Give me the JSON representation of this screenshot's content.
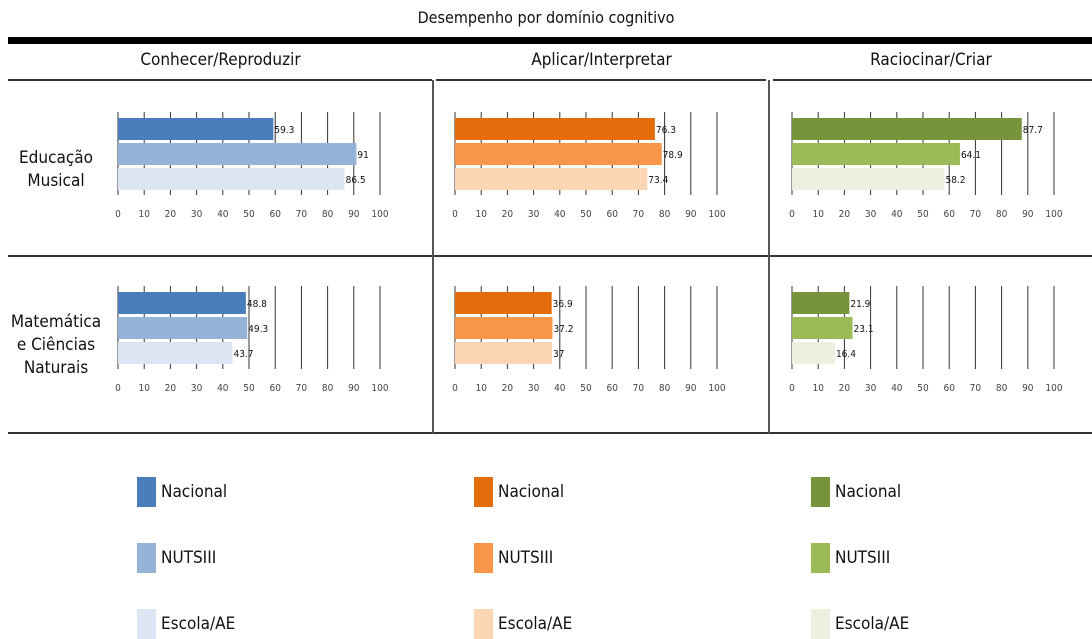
{
  "title": "Desempenho por domínio cognitivo",
  "columns": [
    {
      "label": "Conhecer/Reproduzir"
    },
    {
      "label": "Aplicar/Interpretar"
    },
    {
      "label": "Raciocinar/Criar"
    }
  ],
  "rows": [
    {
      "label_lines": [
        "Educação",
        "Musical"
      ]
    },
    {
      "label_lines": [
        "Matemática",
        "e Ciências",
        "Naturais"
      ]
    }
  ],
  "series_names": [
    "Nacional",
    "NUTSIII",
    "Escola/AE"
  ],
  "palettes": [
    [
      "#4a7ebb",
      "#95b3d7",
      "#dce6f2"
    ],
    [
      "#e46c0a",
      "#f79646",
      "#fcd5b5"
    ],
    [
      "#77933c",
      "#9bbb59",
      "#ebf1de"
    ]
  ],
  "chart_data": [
    {
      "type": "bar",
      "orientation": "horizontal",
      "row": "Educação Musical",
      "column": "Conhecer/Reproduzir",
      "xlim": [
        0,
        100
      ],
      "ticks": [
        0,
        10,
        20,
        30,
        40,
        50,
        60,
        70,
        80,
        90,
        100
      ],
      "series": [
        {
          "name": "Nacional",
          "value": 59.3,
          "label": "59.3"
        },
        {
          "name": "NUTSIII",
          "value": 91,
          "label": "91"
        },
        {
          "name": "Escola/AE",
          "value": 86.5,
          "label": "86.5"
        }
      ]
    },
    {
      "type": "bar",
      "orientation": "horizontal",
      "row": "Educação Musical",
      "column": "Aplicar/Interpretar",
      "xlim": [
        0,
        100
      ],
      "ticks": [
        0,
        10,
        20,
        30,
        40,
        50,
        60,
        70,
        80,
        90,
        100
      ],
      "series": [
        {
          "name": "Nacional",
          "value": 76.3,
          "label": "76.3"
        },
        {
          "name": "NUTSIII",
          "value": 78.9,
          "label": "78.9"
        },
        {
          "name": "Escola/AE",
          "value": 73.4,
          "label": "73.4"
        }
      ]
    },
    {
      "type": "bar",
      "orientation": "horizontal",
      "row": "Educação Musical",
      "column": "Raciocinar/Criar",
      "xlim": [
        0,
        100
      ],
      "ticks": [
        0,
        10,
        20,
        30,
        40,
        50,
        60,
        70,
        80,
        90,
        100
      ],
      "series": [
        {
          "name": "Nacional",
          "value": 87.7,
          "label": "87.7"
        },
        {
          "name": "NUTSIII",
          "value": 64.1,
          "label": "64.1"
        },
        {
          "name": "Escola/AE",
          "value": 58.2,
          "label": "58.2"
        }
      ]
    },
    {
      "type": "bar",
      "orientation": "horizontal",
      "row": "Matemática e Ciências Naturais",
      "column": "Conhecer/Reproduzir",
      "xlim": [
        0,
        100
      ],
      "ticks": [
        0,
        10,
        20,
        30,
        40,
        50,
        60,
        70,
        80,
        90,
        100
      ],
      "series": [
        {
          "name": "Nacional",
          "value": 48.8,
          "label": "48.8"
        },
        {
          "name": "NUTSIII",
          "value": 49.3,
          "label": "49.3"
        },
        {
          "name": "Escola/AE",
          "value": 43.7,
          "label": "43.7"
        }
      ]
    },
    {
      "type": "bar",
      "orientation": "horizontal",
      "row": "Matemática e Ciências Naturais",
      "column": "Aplicar/Interpretar",
      "xlim": [
        0,
        100
      ],
      "ticks": [
        0,
        10,
        20,
        30,
        40,
        50,
        60,
        70,
        80,
        90,
        100
      ],
      "series": [
        {
          "name": "Nacional",
          "value": 36.9,
          "label": "36.9"
        },
        {
          "name": "NUTSIII",
          "value": 37.2,
          "label": "37.2"
        },
        {
          "name": "Escola/AE",
          "value": 37,
          "label": "37"
        }
      ]
    },
    {
      "type": "bar",
      "orientation": "horizontal",
      "row": "Matemática e Ciências Naturais",
      "column": "Raciocinar/Criar",
      "xlim": [
        0,
        100
      ],
      "ticks": [
        0,
        10,
        20,
        30,
        40,
        50,
        60,
        70,
        80,
        90,
        100
      ],
      "series": [
        {
          "name": "Nacional",
          "value": 21.9,
          "label": "21.9"
        },
        {
          "name": "NUTSIII",
          "value": 23.1,
          "label": "23.1"
        },
        {
          "name": "Escola/AE",
          "value": 16.4,
          "label": "16.4"
        }
      ]
    }
  ]
}
